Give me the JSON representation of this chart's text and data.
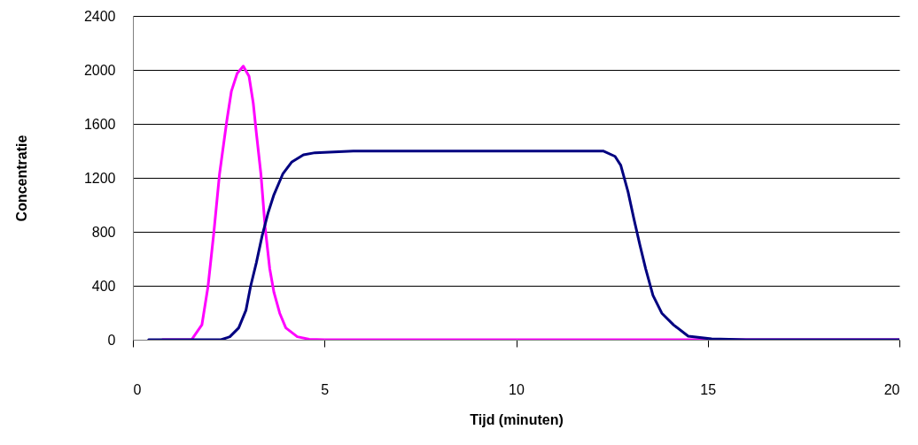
{
  "chart_data": {
    "type": "line",
    "xlabel": "Tijd (minuten)",
    "ylabel": "Concentratie",
    "xlim": [
      0,
      20
    ],
    "xticks": [
      0,
      5,
      10,
      15,
      20
    ],
    "ylim": [
      0,
      2400
    ],
    "yticks": [
      0,
      400,
      800,
      1200,
      1600,
      2000,
      2400
    ],
    "grid": "y",
    "marker": "none",
    "line_style": "solid",
    "series": [
      {
        "color": "#ff00ff",
        "x": [
          0.77,
          1.53,
          1.8,
          1.96,
          2.11,
          2.26,
          2.45,
          2.57,
          2.72,
          2.88,
          3.03,
          3.14,
          3.22,
          3.34,
          3.45,
          3.57,
          3.68,
          3.83,
          3.99,
          4.29,
          4.6,
          5,
          10,
          15,
          20
        ],
        "values": [
          0,
          0,
          110,
          395,
          790,
          1228,
          1623,
          1842,
          1974,
          2028,
          1952,
          1754,
          1535,
          1228,
          833,
          526,
          351,
          197,
          88,
          22,
          4,
          0,
          0,
          0,
          0
        ]
      },
      {
        "color": "#000080",
        "x": [
          0.41,
          2.3,
          2.53,
          2.76,
          2.95,
          3.07,
          3.22,
          3.37,
          3.53,
          3.68,
          3.91,
          4.14,
          4.45,
          4.75,
          5.37,
          5.75,
          8,
          10,
          12.27,
          12.58,
          12.73,
          12.92,
          13.07,
          13.23,
          13.38,
          13.57,
          13.8,
          14.11,
          14.49,
          15.1,
          16,
          20
        ],
        "values": [
          0,
          0,
          22,
          88,
          219,
          395,
          570,
          768,
          943,
          1075,
          1228,
          1316,
          1371,
          1386,
          1393,
          1399,
          1399,
          1399,
          1399,
          1359,
          1293,
          1096,
          899,
          701,
          526,
          329,
          197,
          109,
          26,
          6,
          0,
          0
        ]
      }
    ]
  }
}
